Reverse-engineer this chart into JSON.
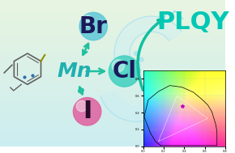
{
  "bg_color_top": "#e8f5e0",
  "bg_color_bottom": "#d0eef0",
  "title_text": "PLQY",
  "title_color": "#00c8b4",
  "title_fontsize": 22,
  "mn_text": "Mn",
  "mn_color": "#20b0b0",
  "mn_fontsize": 18,
  "br_text": "Br",
  "br_color": "#1a1a6a",
  "br_fontsize": 20,
  "cl_text": "Cl",
  "cl_color": "#1a1a6a",
  "cl_fontsize": 20,
  "i_text": "I",
  "i_color": "#1a1a6a",
  "i_fontsize": 22,
  "br_bubble_color": "#5ec8d8",
  "cl_bubble_color": "#40d0c0",
  "i_bubble_color": "#e060a0",
  "arrow_color": "#20c0a0",
  "water_color": "#b0e8f0",
  "cie_box_color": "#ffffff",
  "figsize": [
    2.9,
    1.89
  ],
  "dpi": 100
}
